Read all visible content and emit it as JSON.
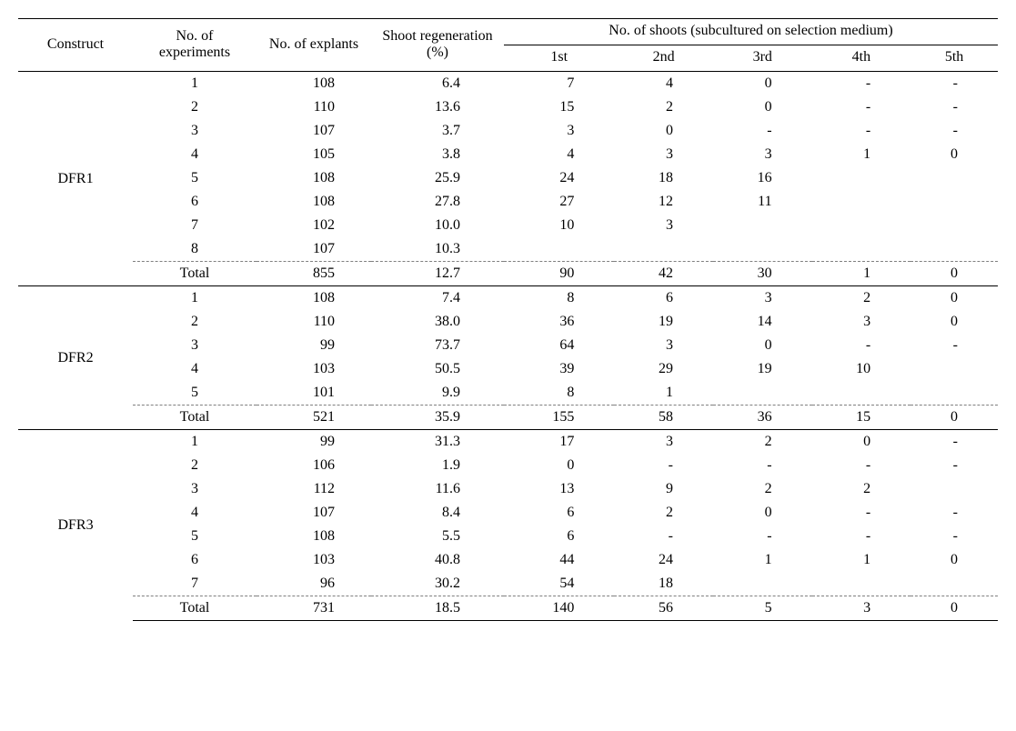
{
  "headers": {
    "construct": "Construct",
    "experiments": "No. of experiments",
    "explants": "No. of explants",
    "regen": "Shoot regeneration (%)",
    "shoots_group": "No. of shoots\n(subcultured on selection medium)",
    "sub": [
      "1st",
      "2nd",
      "3rd",
      "4th",
      "5th"
    ]
  },
  "total_label": "Total",
  "groups": [
    {
      "name": "DFR1",
      "rows": [
        {
          "exp": "1",
          "expl": "108",
          "regen": "6.4",
          "s": [
            "7",
            "4",
            "0",
            "-",
            "-"
          ]
        },
        {
          "exp": "2",
          "expl": "110",
          "regen": "13.6",
          "s": [
            "15",
            "2",
            "0",
            "-",
            "-"
          ]
        },
        {
          "exp": "3",
          "expl": "107",
          "regen": "3.7",
          "s": [
            "3",
            "0",
            "-",
            "-",
            "-"
          ]
        },
        {
          "exp": "4",
          "expl": "105",
          "regen": "3.8",
          "s": [
            "4",
            "3",
            "3",
            "1",
            "0"
          ]
        },
        {
          "exp": "5",
          "expl": "108",
          "regen": "25.9",
          "s": [
            "24",
            "18",
            "16",
            "",
            ""
          ]
        },
        {
          "exp": "6",
          "expl": "108",
          "regen": "27.8",
          "s": [
            "27",
            "12",
            "11",
            "",
            ""
          ]
        },
        {
          "exp": "7",
          "expl": "102",
          "regen": "10.0",
          "s": [
            "10",
            "3",
            "",
            "",
            ""
          ]
        },
        {
          "exp": "8",
          "expl": "107",
          "regen": "10.3",
          "s": [
            "",
            "",
            "",
            "",
            ""
          ]
        }
      ],
      "total": {
        "expl": "855",
        "regen": "12.7",
        "s": [
          "90",
          "42",
          "30",
          "1",
          "0"
        ]
      }
    },
    {
      "name": "DFR2",
      "rows": [
        {
          "exp": "1",
          "expl": "108",
          "regen": "7.4",
          "s": [
            "8",
            "6",
            "3",
            "2",
            "0"
          ]
        },
        {
          "exp": "2",
          "expl": "110",
          "regen": "38.0",
          "s": [
            "36",
            "19",
            "14",
            "3",
            "0"
          ]
        },
        {
          "exp": "3",
          "expl": "99",
          "regen": "73.7",
          "s": [
            "64",
            "3",
            "0",
            "-",
            "-"
          ]
        },
        {
          "exp": "4",
          "expl": "103",
          "regen": "50.5",
          "s": [
            "39",
            "29",
            "19",
            "10",
            ""
          ]
        },
        {
          "exp": "5",
          "expl": "101",
          "regen": "9.9",
          "s": [
            "8",
            "1",
            "",
            "",
            ""
          ]
        }
      ],
      "total": {
        "expl": "521",
        "regen": "35.9",
        "s": [
          "155",
          "58",
          "36",
          "15",
          "0"
        ]
      }
    },
    {
      "name": "DFR3",
      "rows": [
        {
          "exp": "1",
          "expl": "99",
          "regen": "31.3",
          "s": [
            "17",
            "3",
            "2",
            "0",
            "-"
          ]
        },
        {
          "exp": "2",
          "expl": "106",
          "regen": "1.9",
          "s": [
            "0",
            "-",
            "-",
            "-",
            "-"
          ]
        },
        {
          "exp": "3",
          "expl": "112",
          "regen": "11.6",
          "s": [
            "13",
            "9",
            "2",
            "2",
            ""
          ]
        },
        {
          "exp": "4",
          "expl": "107",
          "regen": "8.4",
          "s": [
            "6",
            "2",
            "0",
            "-",
            "-"
          ]
        },
        {
          "exp": "5",
          "expl": "108",
          "regen": "5.5",
          "s": [
            "6",
            "-",
            "-",
            "-",
            "-"
          ]
        },
        {
          "exp": "6",
          "expl": "103",
          "regen": "40.8",
          "s": [
            "44",
            "24",
            "1",
            "1",
            "0"
          ]
        },
        {
          "exp": "7",
          "expl": "96",
          "regen": "30.2",
          "s": [
            "54",
            "18",
            "",
            "",
            ""
          ]
        }
      ],
      "total": {
        "expl": "731",
        "regen": "18.5",
        "s": [
          "140",
          "56",
          "5",
          "3",
          "0"
        ]
      }
    }
  ]
}
